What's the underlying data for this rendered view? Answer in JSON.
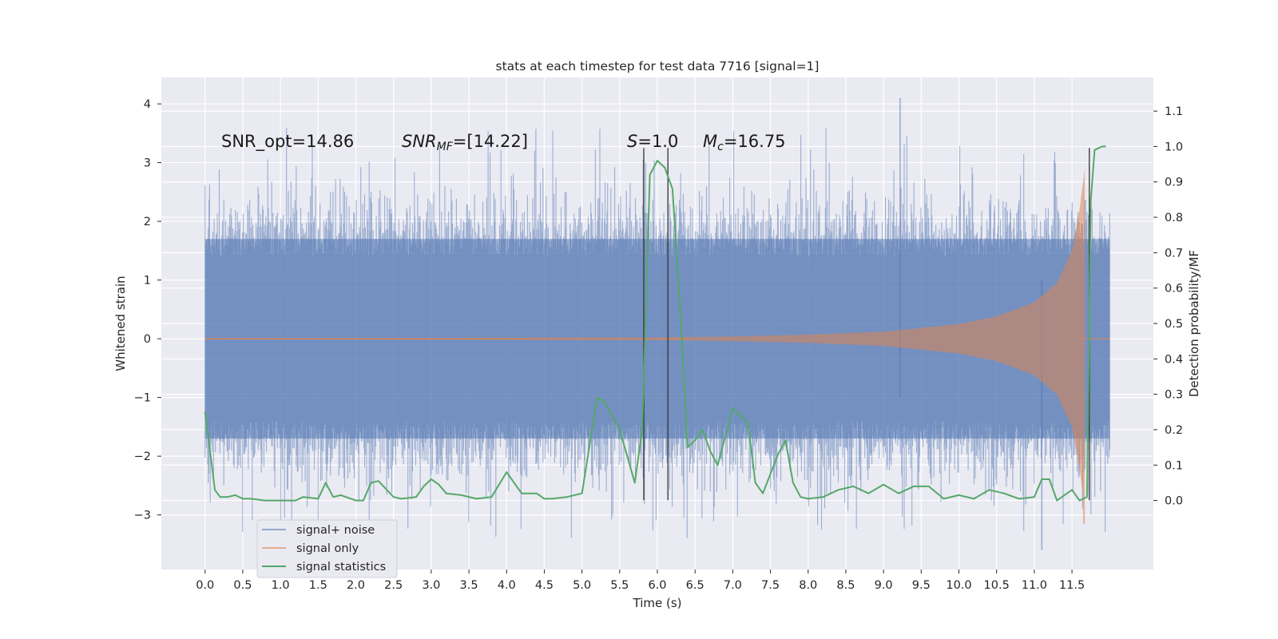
{
  "chart_data": {
    "type": "line",
    "title": "stats at each timestep for test data 7716 [signal=1]",
    "xlabel": "Time (s)",
    "ylabel": "Whitened strain",
    "ylabel_right": "Detection probability/MF",
    "xlim": [
      -0.58,
      12.58
    ],
    "ylim": [
      -3.93,
      4.45
    ],
    "ylim_right": [
      -0.195,
      1.195
    ],
    "x_ticks": [
      "0.0",
      "0.5",
      "1.0",
      "1.5",
      "2.0",
      "2.5",
      "3.0",
      "3.5",
      "4.0",
      "4.5",
      "5.0",
      "5.5",
      "6.0",
      "6.5",
      "7.0",
      "7.5",
      "8.0",
      "8.5",
      "9.0",
      "9.5",
      "10.0",
      "10.5",
      "11.0",
      "11.5"
    ],
    "y_ticks": [
      "4",
      "3",
      "2",
      "1",
      "0",
      "−1",
      "−2",
      "−3"
    ],
    "y_ticks_right": [
      "1.1",
      "1.0",
      "0.9",
      "0.8",
      "0.7",
      "0.6",
      "0.5",
      "0.4",
      "0.3",
      "0.2",
      "0.1",
      "0.0"
    ],
    "grid": true,
    "legend_position": "lower-left",
    "annotations": {
      "snr_opt": "SNR_opt=14.86",
      "snr_mf_main": "SNR",
      "snr_mf_sub": "MF",
      "snr_mf_rest": "=[14.22]",
      "s_main": "S",
      "s_rest": "=1.0",
      "mc_main": "M",
      "mc_sub": "c",
      "mc_rest": "=16.75"
    },
    "colors": {
      "background": "#eaeaf2",
      "grid": "#ffffff",
      "signal_noise": "#4c72b0",
      "signal_only": "#dd8452",
      "signal_statistics": "#55a868",
      "markers": "#333333"
    },
    "series": [
      {
        "name": "signal+ noise",
        "kind": "noise",
        "t_range": [
          0.0,
          12.0
        ],
        "typical_envelope": [
          -1.7,
          1.7
        ],
        "observed_max": 4.1,
        "observed_min": -3.6
      },
      {
        "name": "signal only",
        "kind": "chirp",
        "t_range": [
          0.0,
          12.0
        ],
        "merger_time": 11.67,
        "peak_amplitude": 2.9,
        "min_amplitude": -3.15,
        "amplitude_points": [
          [
            0.0,
            0.01
          ],
          [
            6.0,
            0.02
          ],
          [
            7.0,
            0.04
          ],
          [
            8.0,
            0.07
          ],
          [
            9.0,
            0.12
          ],
          [
            10.0,
            0.25
          ],
          [
            10.5,
            0.38
          ],
          [
            11.0,
            0.62
          ],
          [
            11.3,
            0.95
          ],
          [
            11.5,
            1.5
          ],
          [
            11.6,
            2.2
          ],
          [
            11.67,
            2.9
          ]
        ]
      },
      {
        "name": "signal statistics",
        "kind": "line",
        "axis": "right",
        "points": [
          [
            0.0,
            0.25
          ],
          [
            0.06,
            0.15
          ],
          [
            0.13,
            0.03
          ],
          [
            0.2,
            0.01
          ],
          [
            0.3,
            0.01
          ],
          [
            0.4,
            0.015
          ],
          [
            0.5,
            0.005
          ],
          [
            0.6,
            0.005
          ],
          [
            0.8,
            0.0
          ],
          [
            1.0,
            0.0
          ],
          [
            1.2,
            0.0
          ],
          [
            1.3,
            0.01
          ],
          [
            1.5,
            0.005
          ],
          [
            1.6,
            0.05
          ],
          [
            1.7,
            0.01
          ],
          [
            1.8,
            0.015
          ],
          [
            2.0,
            0.0
          ],
          [
            2.1,
            0.0
          ],
          [
            2.2,
            0.05
          ],
          [
            2.3,
            0.055
          ],
          [
            2.5,
            0.01
          ],
          [
            2.6,
            0.005
          ],
          [
            2.8,
            0.01
          ],
          [
            2.9,
            0.04
          ],
          [
            3.0,
            0.06
          ],
          [
            3.1,
            0.045
          ],
          [
            3.2,
            0.02
          ],
          [
            3.4,
            0.015
          ],
          [
            3.6,
            0.005
          ],
          [
            3.8,
            0.01
          ],
          [
            4.0,
            0.08
          ],
          [
            4.2,
            0.02
          ],
          [
            4.4,
            0.02
          ],
          [
            4.5,
            0.005
          ],
          [
            4.6,
            0.005
          ],
          [
            4.8,
            0.01
          ],
          [
            5.0,
            0.02
          ],
          [
            5.2,
            0.29
          ],
          [
            5.3,
            0.28
          ],
          [
            5.5,
            0.2
          ],
          [
            5.7,
            0.05
          ],
          [
            5.8,
            0.2
          ],
          [
            5.9,
            0.92
          ],
          [
            6.0,
            0.96
          ],
          [
            6.1,
            0.94
          ],
          [
            6.2,
            0.88
          ],
          [
            6.3,
            0.55
          ],
          [
            6.4,
            0.15
          ],
          [
            6.5,
            0.17
          ],
          [
            6.6,
            0.2
          ],
          [
            6.7,
            0.14
          ],
          [
            6.8,
            0.1
          ],
          [
            7.0,
            0.26
          ],
          [
            7.2,
            0.22
          ],
          [
            7.3,
            0.05
          ],
          [
            7.4,
            0.02
          ],
          [
            7.6,
            0.13
          ],
          [
            7.7,
            0.17
          ],
          [
            7.8,
            0.05
          ],
          [
            7.9,
            0.01
          ],
          [
            8.0,
            0.005
          ],
          [
            8.2,
            0.01
          ],
          [
            8.4,
            0.03
          ],
          [
            8.6,
            0.04
          ],
          [
            8.8,
            0.02
          ],
          [
            9.0,
            0.045
          ],
          [
            9.2,
            0.02
          ],
          [
            9.4,
            0.04
          ],
          [
            9.6,
            0.04
          ],
          [
            9.8,
            0.005
          ],
          [
            10.0,
            0.015
          ],
          [
            10.2,
            0.005
          ],
          [
            10.4,
            0.03
          ],
          [
            10.6,
            0.02
          ],
          [
            10.8,
            0.005
          ],
          [
            11.0,
            0.01
          ],
          [
            11.1,
            0.06
          ],
          [
            11.2,
            0.06
          ],
          [
            11.3,
            0.0
          ],
          [
            11.5,
            0.03
          ],
          [
            11.6,
            0.0
          ],
          [
            11.7,
            0.01
          ],
          [
            11.75,
            0.85
          ],
          [
            11.8,
            0.99
          ],
          [
            11.9,
            1.0
          ],
          [
            11.95,
            1.0
          ]
        ]
      }
    ],
    "markers": [
      {
        "x": 5.82,
        "y_from": -2.75,
        "y_to": 3.25
      },
      {
        "x": 6.14,
        "y_from": -2.75,
        "y_to": 3.25
      },
      {
        "x": 11.73,
        "y_from": -2.75,
        "y_to": 3.25
      }
    ]
  }
}
